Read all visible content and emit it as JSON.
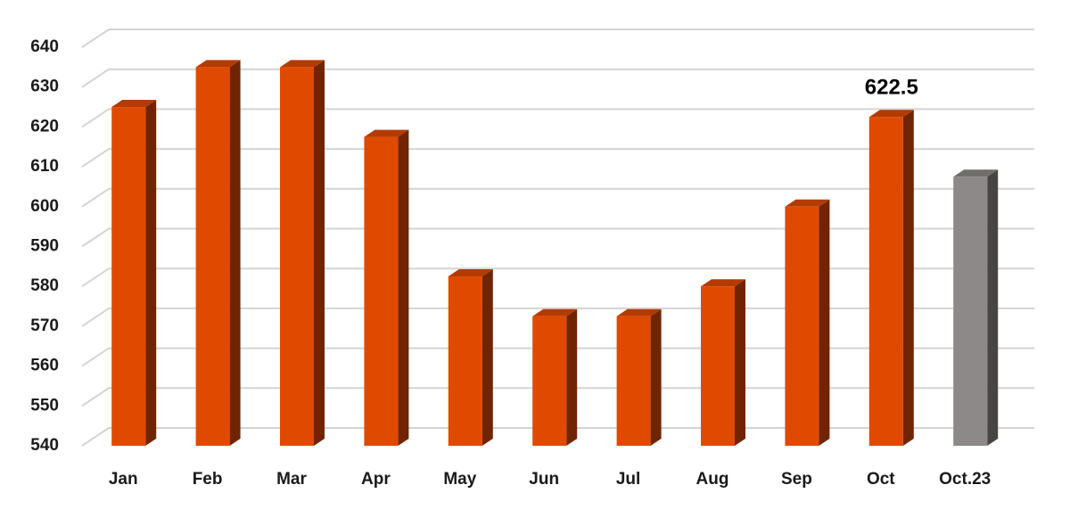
{
  "chart_data": {
    "type": "bar3d",
    "categories": [
      "Jan",
      "Feb",
      "Mar",
      "Apr",
      "May",
      "Jun",
      "Jul",
      "Aug",
      "Sep",
      "Oct",
      "Oct.23"
    ],
    "values": [
      625,
      635,
      635,
      617.5,
      582.5,
      572.5,
      572.5,
      580,
      600,
      622.5,
      607.5
    ],
    "value_labels": [
      null,
      null,
      null,
      null,
      null,
      null,
      null,
      null,
      null,
      "622.5",
      null
    ],
    "colors": [
      "#e04a00",
      "#e04a00",
      "#e04a00",
      "#e04a00",
      "#e04a00",
      "#e04a00",
      "#e04a00",
      "#e04a00",
      "#e04a00",
      "#e04a00",
      "#8c8988"
    ],
    "ylim": [
      540,
      640
    ],
    "yticks": [
      540,
      550,
      560,
      570,
      580,
      590,
      600,
      610,
      620,
      630,
      640
    ],
    "grid": true
  }
}
